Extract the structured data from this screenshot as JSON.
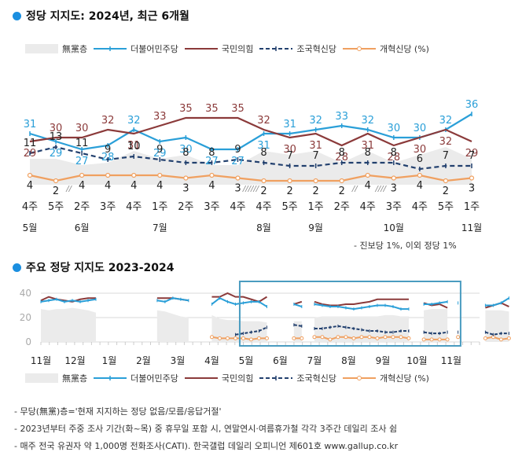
{
  "chart_data": [
    {
      "type": "line",
      "title": "정당 지지도: 2024년, 최근 6개월",
      "legend": [
        "無黨층",
        "더불어민주당",
        "국민의힘",
        "조국혁신당",
        "개혁신당 (%)"
      ],
      "legend_placement": "top",
      "weeks": [
        "4주",
        "5주",
        "2주",
        "3주",
        "4주",
        "1주",
        "2주",
        "3주",
        "4주",
        "4주",
        "5주",
        "1주",
        "2주",
        "4주",
        "3주",
        "4주",
        "5주",
        "1주"
      ],
      "months": [
        {
          "label": "5월",
          "at": 0
        },
        {
          "label": "6월",
          "at": 2
        },
        {
          "label": "7월",
          "at": 5
        },
        {
          "label": "8월",
          "at": 9
        },
        {
          "label": "9월",
          "at": 11
        },
        {
          "label": "10월",
          "at": 14
        },
        {
          "label": "11월",
          "at": 17
        }
      ],
      "break_markers": [
        {
          "after": 1,
          "text": "//"
        },
        {
          "after": 8,
          "text": "//////"
        },
        {
          "after": 12,
          "text": "//"
        },
        {
          "after": 13,
          "text": "////"
        }
      ],
      "series": [
        {
          "name": "더불어민주당",
          "color": "#2a9fd8",
          "values": [
            31,
            29,
            27,
            28,
            32,
            29,
            30,
            27,
            27,
            31,
            31,
            32,
            33,
            32,
            30,
            30,
            32,
            36
          ]
        },
        {
          "name": "국민의힘",
          "color": "#8b3a3a",
          "values": [
            29,
            30,
            30,
            32,
            31,
            33,
            35,
            35,
            35,
            32,
            30,
            31,
            28,
            31,
            28,
            30,
            32,
            29
          ]
        },
        {
          "name": "조국혁신당",
          "color": "#22406e",
          "values": [
            11,
            13,
            11,
            9,
            10,
            9,
            8,
            8,
            9,
            8,
            7,
            7,
            8,
            8,
            8,
            6,
            7,
            7
          ]
        },
        {
          "name": "개혁신당",
          "color": "#f0a060",
          "values": [
            4,
            2,
            4,
            4,
            4,
            4,
            3,
            4,
            3,
            2,
            2,
            2,
            2,
            4,
            3,
            4,
            2,
            3
          ]
        }
      ],
      "footnote": "- 진보당 1%, 이외 정당 1%"
    },
    {
      "type": "line",
      "title": "주요 정당 지지도 2023-2024",
      "yticks": [
        0,
        20,
        40
      ],
      "ylim": [
        0,
        45
      ],
      "grid": true,
      "xticks": [
        "11월",
        "12월",
        "1월",
        "2월",
        "3월",
        "4월",
        "5월",
        "6월",
        "7월",
        "8월",
        "9월",
        "10월",
        "11월"
      ],
      "highlight_range": [
        "5월",
        "11월"
      ],
      "legend": [
        "無黨층",
        "더불어민주당",
        "국민의힘",
        "조국혁신당",
        "개혁신당 (%)"
      ],
      "legend_placement": "bottom",
      "segments": [
        {
          "start": 0.0,
          "dem": [
            33,
            34,
            35,
            33,
            34,
            33,
            34,
            35
          ],
          "ppp": [
            34,
            37,
            35,
            34,
            33,
            35,
            36,
            36
          ],
          "cho": null,
          "ref": null,
          "none": [
            27,
            26,
            27,
            27,
            28,
            27,
            26,
            24
          ]
        },
        {
          "start": 3.4,
          "dem": [
            34,
            33,
            36,
            35,
            34
          ],
          "ppp": [
            36,
            36,
            36,
            35,
            34
          ],
          "cho": null,
          "ref": null,
          "none": [
            26,
            25,
            23,
            21,
            20
          ]
        },
        {
          "start": 5.0,
          "dem": [
            31,
            36,
            33,
            31,
            32,
            33,
            33,
            29
          ],
          "ppp": [
            37,
            37,
            40,
            37,
            37,
            35,
            33,
            37
          ],
          "cho": [
            null,
            null,
            null,
            6,
            7,
            8,
            9,
            12
          ],
          "ref": [
            4,
            3,
            3,
            3,
            3,
            2,
            3,
            3
          ],
          "none": [
            22,
            19,
            18,
            18,
            17,
            17,
            17,
            16
          ]
        },
        {
          "start": 7.4,
          "dem": [
            31,
            29
          ],
          "ppp": [
            31,
            33
          ],
          "cho": [
            14,
            13
          ],
          "ref": [
            3,
            3
          ],
          "none": [
            17,
            17
          ]
        },
        {
          "start": 8.0,
          "dem": [
            31,
            30,
            29,
            29,
            28,
            27,
            28,
            29,
            30,
            30,
            29,
            27,
            27
          ],
          "ppp": [
            33,
            31,
            30,
            30,
            31,
            31,
            32,
            33,
            35,
            35,
            35,
            35,
            35
          ],
          "cho": [
            11,
            11,
            12,
            13,
            12,
            11,
            10,
            9,
            9,
            8,
            8,
            9,
            9
          ],
          "ref": [
            4,
            4,
            2,
            4,
            4,
            3,
            4,
            4,
            3,
            4,
            4,
            4,
            3
          ],
          "none": [
            20,
            21,
            21,
            21,
            21,
            21,
            21,
            21,
            21,
            22,
            22,
            21,
            21
          ]
        },
        {
          "start": 11.2,
          "dem": [
            31,
            31,
            32,
            33
          ],
          "ppp": [
            32,
            30,
            31,
            28
          ],
          "cho": [
            8,
            7,
            7,
            8
          ],
          "ref": [
            2,
            2,
            2,
            2
          ],
          "none": [
            26,
            27,
            27,
            27
          ]
        },
        {
          "start": 12.2,
          "dem": [
            32
          ],
          "ppp": null,
          "cho": [
            8
          ],
          "ref": [
            4
          ],
          "none": null
        },
        {
          "start": 13.0,
          "dem": [
            30,
            30,
            32,
            36
          ],
          "ppp": [
            28,
            30,
            32,
            29
          ],
          "cho": [
            8,
            6,
            7,
            7
          ],
          "ref": [
            3,
            4,
            2,
            3
          ],
          "none": [
            26,
            26,
            26,
            25
          ]
        }
      ]
    }
  ],
  "notes": [
    "- 무당(無黨)층='현재 지지하는 정당 없음/모름/응답거절'",
    "- 2023년부터 주중 조사 기간(화~목) 중 휴무일 포함 시, 연말연시·여름휴가철 각각 3주간 데일리 조사 쉼",
    "- 매주 전국 유권자 약 1,000명 전화조사(CATI). 한국갤럽 데일리 오피니언 제601호 www.gallup.co.kr"
  ],
  "colors": {
    "dem": "#2a9fd8",
    "ppp": "#8b3a3a",
    "cho": "#22406e",
    "ref": "#f0a060",
    "none": "#ebebeb",
    "accent": "#1b8fe0",
    "highlight_box": "#4a9cc0"
  }
}
